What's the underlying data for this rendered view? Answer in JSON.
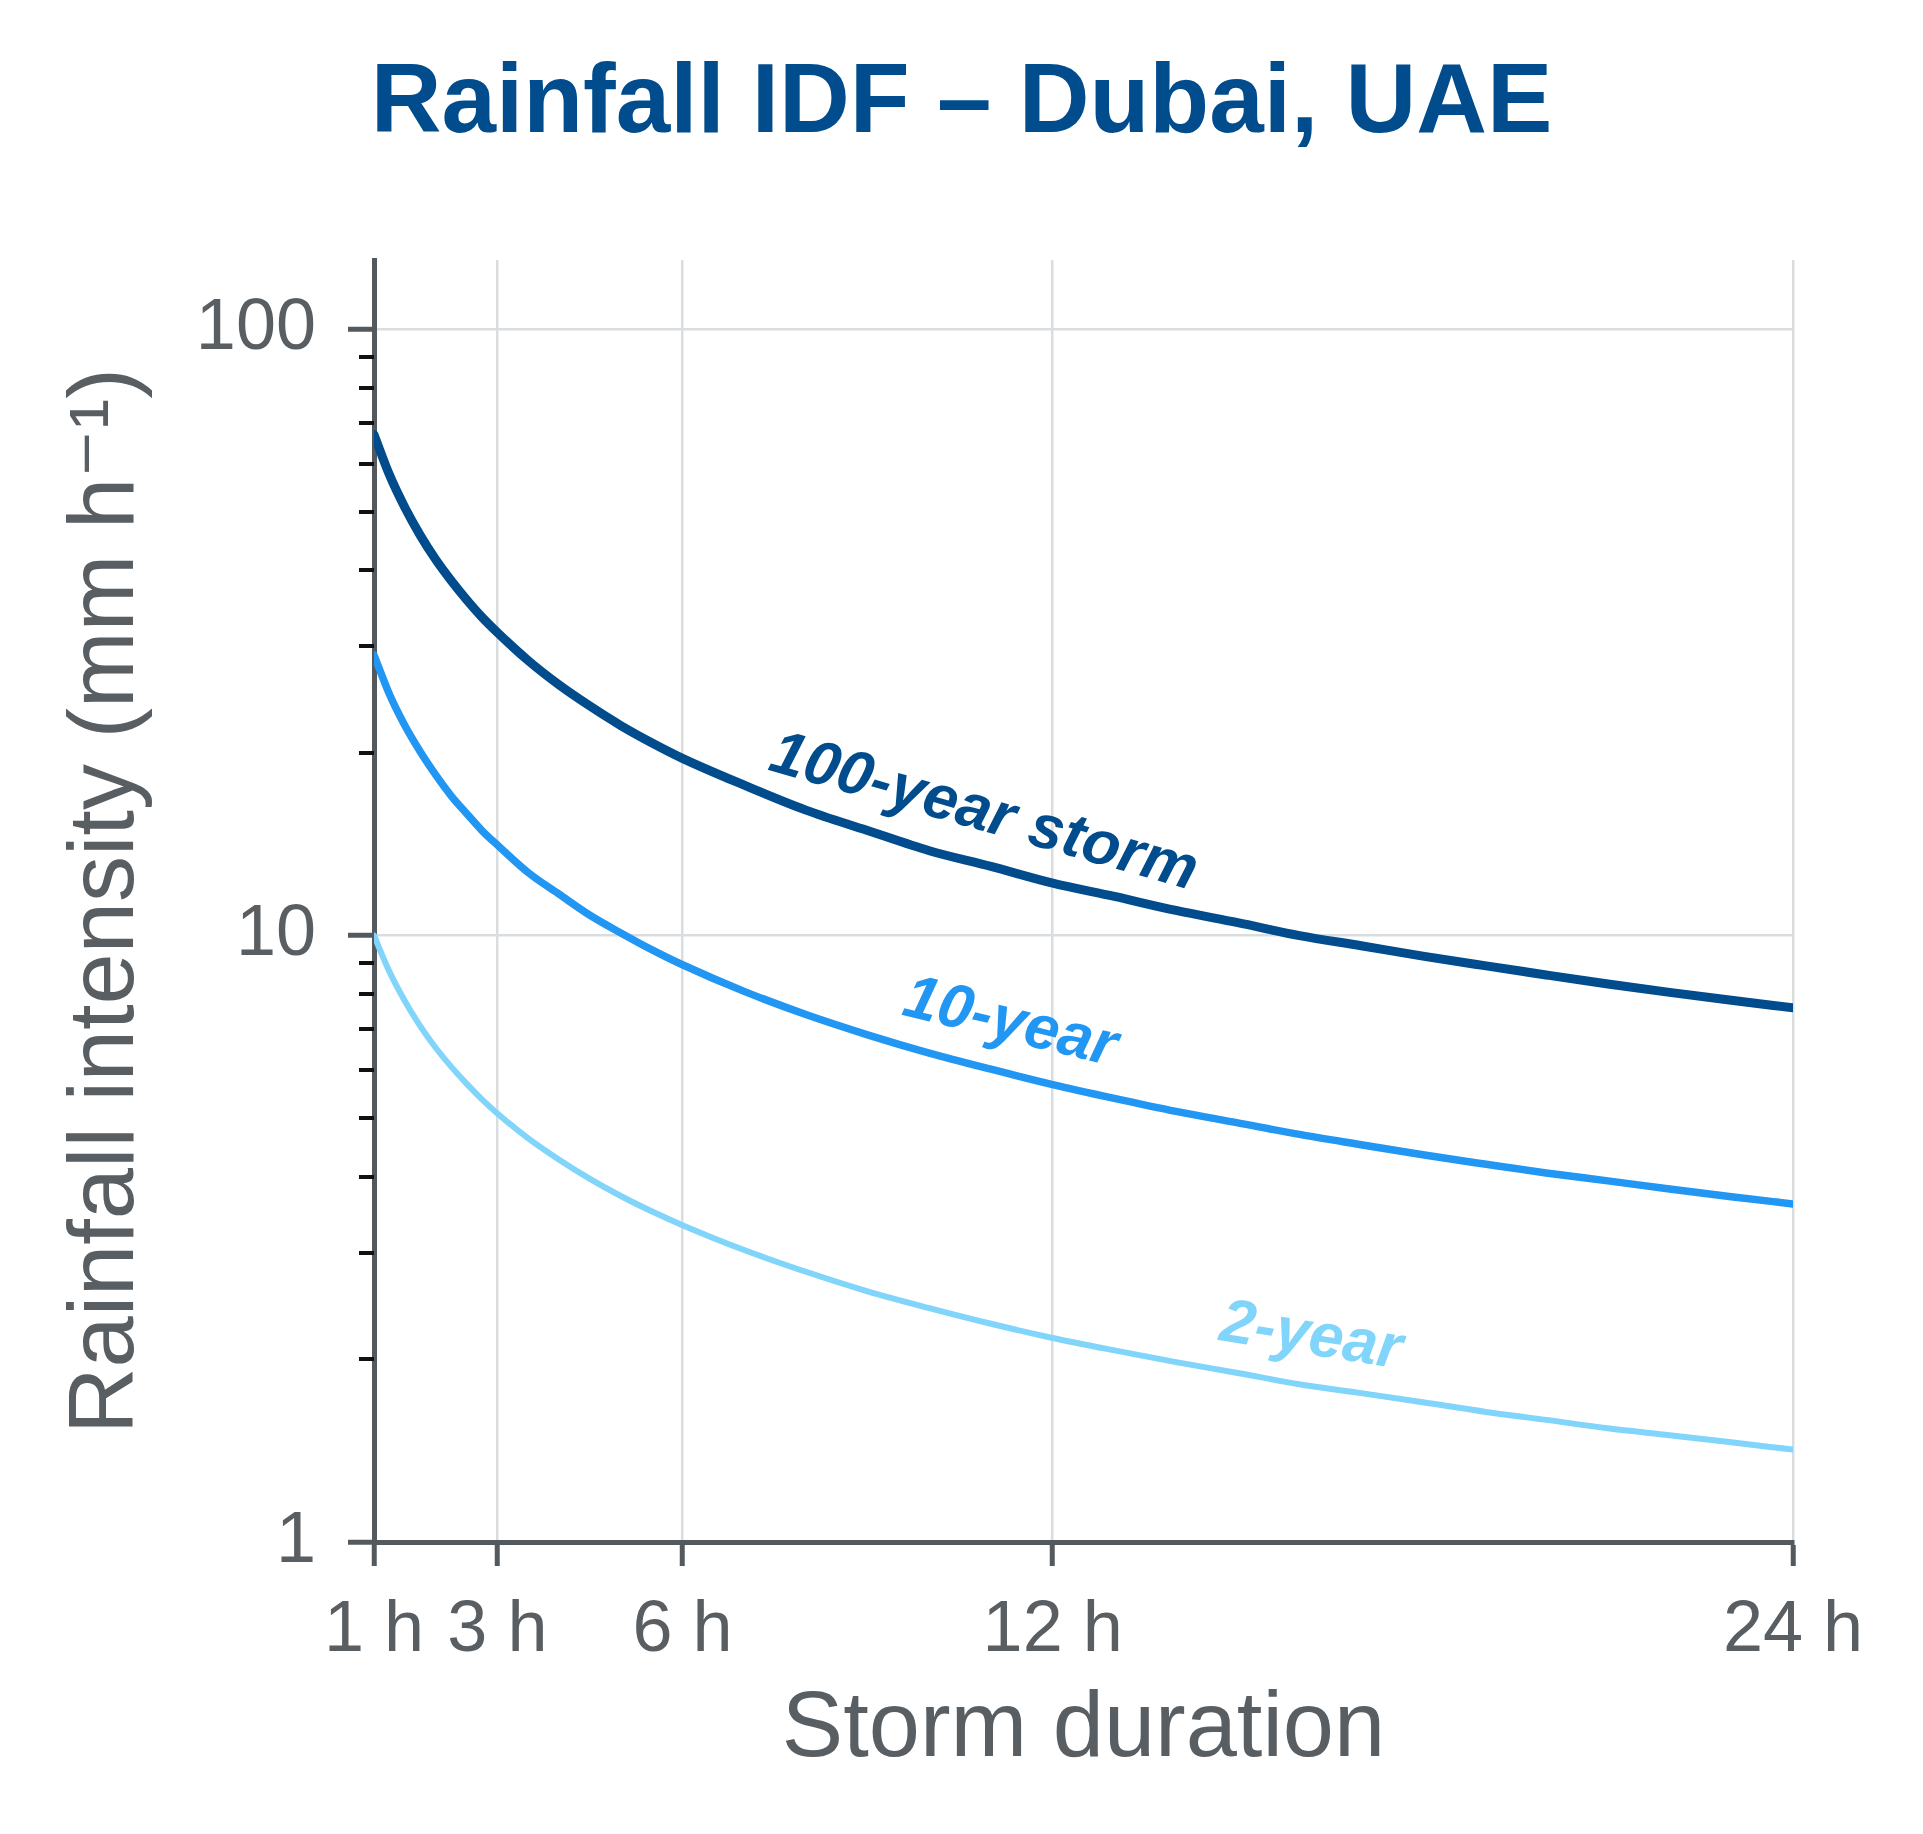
{
  "chart_data": {
    "type": "line",
    "title": "Rainfall IDF – Dubai, UAE",
    "xlabel": "Storm duration",
    "ylabel": "Rainfall intensity (mm h⁻¹)",
    "x": [
      1,
      1.25,
      1.5,
      1.75,
      2,
      2.25,
      2.5,
      2.75,
      3,
      3.5,
      4,
      4.5,
      5,
      5.5,
      6,
      7,
      8,
      9,
      10,
      11,
      12,
      13,
      14,
      15,
      16,
      17,
      18,
      19,
      20,
      21,
      22,
      23,
      24
    ],
    "series": [
      {
        "name": "100-year storm",
        "color": "#004c8c",
        "values": [
          67,
          57.5,
          50.8,
          45.7,
          41.7,
          38.5,
          35.8,
          33.5,
          31.6,
          28.4,
          25.9,
          23.9,
          22.2,
          20.8,
          19.6,
          17.7,
          16.1,
          14.9,
          13.8,
          13.0,
          12.2,
          11.6,
          11.0,
          10.5,
          10.0,
          9.62,
          9.25,
          8.92,
          8.61,
          8.32,
          8.06,
          7.82,
          7.6
        ]
      },
      {
        "name": "10-year",
        "color": "#2196f3",
        "values": [
          29,
          25.0,
          22.2,
          20.1,
          18.4,
          17.0,
          15.9,
          14.9,
          14.1,
          12.7,
          11.7,
          10.8,
          10.1,
          9.48,
          8.95,
          8.09,
          7.41,
          6.86,
          6.4,
          6.02,
          5.68,
          5.39,
          5.13,
          4.91,
          4.7,
          4.52,
          4.35,
          4.2,
          4.06,
          3.94,
          3.82,
          3.71,
          3.61
        ]
      },
      {
        "name": "2-year",
        "color": "#81d4fa",
        "values": [
          10,
          8.72,
          7.8,
          7.09,
          6.53,
          6.08,
          5.7,
          5.37,
          5.09,
          4.63,
          4.27,
          3.97,
          3.72,
          3.51,
          3.33,
          3.03,
          2.79,
          2.59,
          2.43,
          2.29,
          2.17,
          2.07,
          1.98,
          1.9,
          1.82,
          1.76,
          1.7,
          1.64,
          1.59,
          1.54,
          1.5,
          1.46,
          1.42
        ]
      }
    ],
    "xlim": [
      1,
      24
    ],
    "xticks": [
      {
        "value": 1,
        "label": "1 h"
      },
      {
        "value": 3,
        "label": "3 h"
      },
      {
        "value": 6,
        "label": "6 h"
      },
      {
        "value": 12,
        "label": "12 h"
      },
      {
        "value": 24,
        "label": "24 h"
      }
    ],
    "ylim": [
      1,
      130
    ],
    "yticks": [
      1,
      {
        "value": 2,
        "label": null
      },
      {
        "value": 3,
        "label": null
      },
      {
        "value": 4,
        "label": null
      },
      {
        "value": 5,
        "label": null
      },
      {
        "value": 6,
        "label": null
      },
      {
        "value": 7,
        "label": null
      },
      {
        "value": 8,
        "label": null
      },
      {
        "value": 9,
        "label": null
      },
      10,
      {
        "value": 20,
        "label": null
      },
      {
        "value": 30,
        "label": null
      },
      {
        "value": 40,
        "label": null
      },
      {
        "value": 50,
        "label": null
      },
      {
        "value": 60,
        "label": null
      },
      {
        "value": 70,
        "label": null
      },
      {
        "value": 80,
        "label": null
      },
      {
        "value": 90,
        "label": null
      },
      100
    ],
    "log": "y",
    "grid": true,
    "marker": "none",
    "line_style": "solid"
  }
}
